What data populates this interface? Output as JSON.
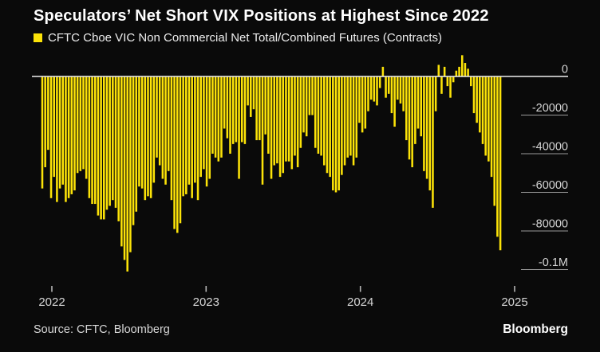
{
  "header": {
    "title": "Speculators’ Net Short VIX Positions at Highest Since 2022",
    "legend": {
      "label": "CFTC Cboe VIC Non Commercial Net Total/Combined Futures (Contracts)",
      "color": "#fce308"
    }
  },
  "chart_data": {
    "type": "bar",
    "title": "Speculators’ Net Short VIX Positions at Highest Since 2022",
    "series_name": "CFTC Cboe VIC Non Commercial Net Total/Combined Futures (Contracts)",
    "unit": "contracts",
    "frequency": "weekly",
    "bar_color": "#fce308",
    "background_color": "#0a0a0a",
    "legend_position": "top-left",
    "grid": "right-axis-tick-underlines-only",
    "x_tick_labels": [
      "2022",
      "2023",
      "2024",
      "2025"
    ],
    "y_ticks": [
      {
        "label": "0",
        "value": 0
      },
      {
        "label": "-20000",
        "value": -20000
      },
      {
        "label": "-40000",
        "value": -40000
      },
      {
        "label": "-60000",
        "value": -60000
      },
      {
        "label": "-80000",
        "value": -80000
      },
      {
        "label": "-0.1M",
        "value": -100000
      }
    ],
    "ylim": [
      -104000,
      14000
    ],
    "values": [
      -58000,
      -47000,
      -38000,
      -63000,
      -52000,
      -65000,
      -58000,
      -56000,
      -65000,
      -63000,
      -61000,
      -59000,
      -50000,
      -49000,
      -48000,
      -53000,
      -63000,
      -66000,
      -66000,
      -72000,
      -74000,
      -74000,
      -69000,
      -67000,
      -64000,
      -68000,
      -75000,
      -88000,
      -95000,
      -101000,
      -91000,
      -77000,
      -70000,
      -57000,
      -58000,
      -64000,
      -62000,
      -63000,
      -55000,
      -42000,
      -46000,
      -53000,
      -56000,
      -49000,
      -64000,
      -79000,
      -81000,
      -76000,
      -62000,
      -61000,
      -56000,
      -63000,
      -55000,
      -64000,
      -52000,
      -48000,
      -57000,
      -53000,
      -40000,
      -42000,
      -44000,
      -42000,
      -27000,
      -32000,
      -40000,
      -35000,
      -34000,
      -53000,
      -34000,
      -35000,
      -15000,
      -21000,
      -17000,
      -33000,
      -33000,
      -56000,
      -30000,
      -40000,
      -53000,
      -46000,
      -45000,
      -52000,
      -50000,
      -44000,
      -44000,
      -48000,
      -41000,
      -47000,
      -37000,
      -29000,
      -31000,
      -20000,
      -20000,
      -37000,
      -40000,
      -41000,
      -46000,
      -50000,
      -52000,
      -59000,
      -60000,
      -59000,
      -51000,
      -46000,
      -42000,
      -41000,
      -46000,
      -42000,
      -24000,
      -29000,
      -27000,
      -18000,
      -12000,
      -13000,
      -15000,
      -6000,
      5000,
      -11000,
      -9000,
      -19000,
      -26000,
      -12000,
      -14000,
      -18000,
      -33000,
      -43000,
      -47000,
      -35000,
      -27000,
      -31000,
      -49000,
      -53000,
      -59000,
      -68000,
      -18000,
      6000,
      -9000,
      5000,
      -5000,
      -11000,
      -3000,
      3000,
      5000,
      11000,
      7000,
      4000,
      -5000,
      -19000,
      -24000,
      -29000,
      -35000,
      -41000,
      -44000,
      -52000,
      -67000,
      -83000,
      -90000
    ]
  },
  "footer": {
    "source": "Source: CFTC, Bloomberg",
    "brand": "Bloomberg"
  }
}
